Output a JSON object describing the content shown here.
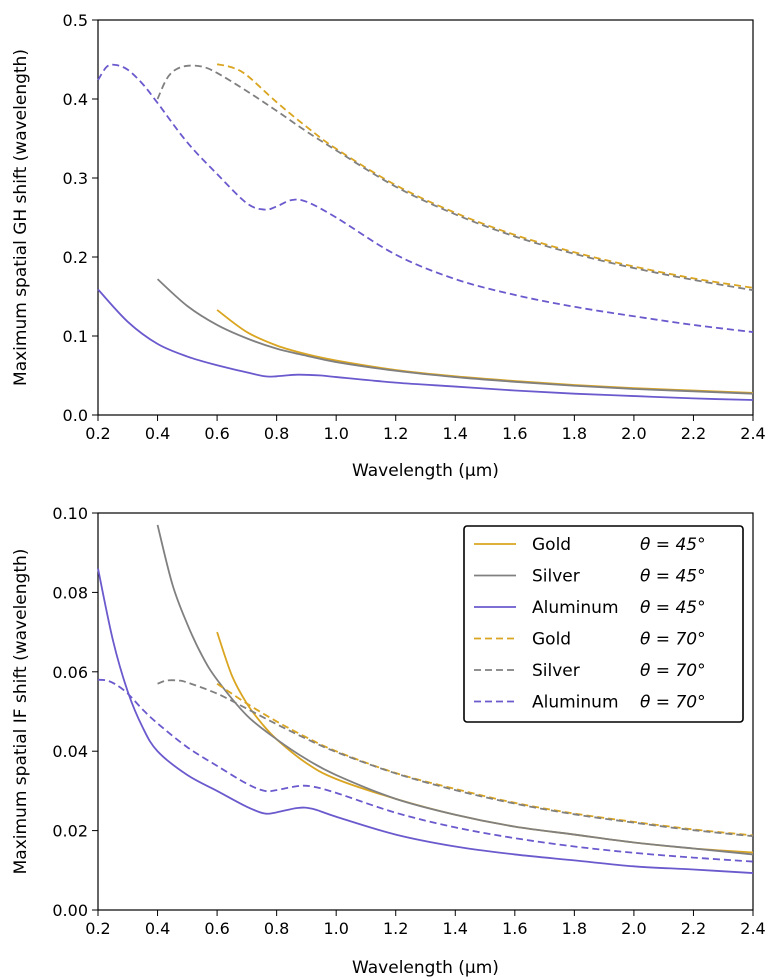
{
  "chart_data": [
    {
      "type": "line",
      "xlabel": "Wavelength (μm)",
      "ylabel": "Maximum spatial GH shift (wavelength)",
      "xlim": [
        0.2,
        2.4
      ],
      "ylim": [
        0.0,
        0.5
      ],
      "xticks": [
        "0.2",
        "0.4",
        "0.6",
        "0.8",
        "1.0",
        "1.2",
        "1.4",
        "1.6",
        "1.8",
        "2.0",
        "2.2",
        "2.4"
      ],
      "yticks": [
        "0.0",
        "0.1",
        "0.2",
        "0.3",
        "0.4",
        "0.5"
      ],
      "grid": false,
      "series": [
        {
          "material": "Gold",
          "angle": "45",
          "color": "#DAA520",
          "dash": "solid",
          "x": [
            0.6,
            0.7,
            0.8,
            0.9,
            1.0,
            1.2,
            1.4,
            1.6,
            1.8,
            2.0,
            2.2,
            2.4
          ],
          "y": [
            0.133,
            0.105,
            0.088,
            0.077,
            0.069,
            0.057,
            0.049,
            0.043,
            0.038,
            0.034,
            0.031,
            0.028
          ]
        },
        {
          "material": "Silver",
          "angle": "45",
          "color": "#808080",
          "dash": "solid",
          "x": [
            0.4,
            0.5,
            0.6,
            0.7,
            0.8,
            0.9,
            1.0,
            1.2,
            1.4,
            1.6,
            1.8,
            2.0,
            2.2,
            2.4
          ],
          "y": [
            0.172,
            0.138,
            0.114,
            0.097,
            0.084,
            0.075,
            0.067,
            0.056,
            0.048,
            0.042,
            0.037,
            0.033,
            0.03,
            0.027
          ]
        },
        {
          "material": "Aluminum",
          "angle": "45",
          "color": "#6A5ACD",
          "dash": "solid",
          "x": [
            0.2,
            0.3,
            0.4,
            0.5,
            0.6,
            0.7,
            0.76,
            0.8,
            0.87,
            0.95,
            1.0,
            1.2,
            1.4,
            1.6,
            1.8,
            2.0,
            2.2,
            2.4
          ],
          "y": [
            0.159,
            0.118,
            0.09,
            0.074,
            0.063,
            0.054,
            0.049,
            0.049,
            0.051,
            0.05,
            0.048,
            0.041,
            0.036,
            0.031,
            0.027,
            0.024,
            0.021,
            0.019
          ]
        },
        {
          "material": "Gold",
          "angle": "70",
          "color": "#DAA520",
          "dash": "dashed",
          "x": [
            0.6,
            0.65,
            0.7,
            0.8,
            0.9,
            1.0,
            1.2,
            1.4,
            1.6,
            1.8,
            2.0,
            2.2,
            2.4
          ],
          "y": [
            0.444,
            0.44,
            0.43,
            0.396,
            0.365,
            0.337,
            0.291,
            0.256,
            0.228,
            0.206,
            0.188,
            0.173,
            0.161
          ]
        },
        {
          "material": "Silver",
          "angle": "70",
          "color": "#808080",
          "dash": "dashed",
          "x": [
            0.4,
            0.43,
            0.46,
            0.5,
            0.55,
            0.6,
            0.7,
            0.8,
            0.9,
            1.0,
            1.2,
            1.4,
            1.6,
            1.8,
            2.0,
            2.2,
            2.4
          ],
          "y": [
            0.4,
            0.425,
            0.437,
            0.442,
            0.441,
            0.433,
            0.41,
            0.385,
            0.359,
            0.335,
            0.289,
            0.254,
            0.226,
            0.204,
            0.186,
            0.171,
            0.158
          ]
        },
        {
          "material": "Aluminum",
          "angle": "70",
          "color": "#6A5ACD",
          "dash": "dashed",
          "x": [
            0.2,
            0.23,
            0.26,
            0.3,
            0.35,
            0.4,
            0.5,
            0.6,
            0.7,
            0.76,
            0.8,
            0.85,
            0.9,
            1.0,
            1.2,
            1.4,
            1.6,
            1.8,
            2.0,
            2.2,
            2.4
          ],
          "y": [
            0.424,
            0.441,
            0.443,
            0.437,
            0.419,
            0.395,
            0.345,
            0.305,
            0.268,
            0.26,
            0.264,
            0.272,
            0.27,
            0.25,
            0.203,
            0.172,
            0.152,
            0.137,
            0.125,
            0.114,
            0.105
          ]
        }
      ]
    },
    {
      "type": "line",
      "xlabel": "Wavelength (μm)",
      "ylabel": "Maximum spatial IF shift (wavelength)",
      "xlim": [
        0.2,
        2.4
      ],
      "ylim": [
        0.0,
        0.1
      ],
      "xticks": [
        "0.2",
        "0.4",
        "0.6",
        "0.8",
        "1.0",
        "1.2",
        "1.4",
        "1.6",
        "1.8",
        "2.0",
        "2.2",
        "2.4"
      ],
      "yticks": [
        "0.00",
        "0.02",
        "0.04",
        "0.06",
        "0.08",
        "0.10"
      ],
      "grid": false,
      "legend_position": "top-right",
      "series": [
        {
          "material": "Gold",
          "angle": "45",
          "color": "#DAA520",
          "dash": "solid",
          "x": [
            0.6,
            0.65,
            0.7,
            0.75,
            0.8,
            0.9,
            1.0,
            1.2,
            1.4,
            1.6,
            1.8,
            2.0,
            2.2,
            2.4
          ],
          "y": [
            0.07,
            0.059,
            0.052,
            0.047,
            0.043,
            0.037,
            0.033,
            0.028,
            0.024,
            0.021,
            0.019,
            0.017,
            0.0155,
            0.0145
          ]
        },
        {
          "material": "Silver",
          "angle": "45",
          "color": "#808080",
          "dash": "solid",
          "x": [
            0.4,
            0.45,
            0.5,
            0.55,
            0.6,
            0.7,
            0.8,
            0.9,
            1.0,
            1.2,
            1.4,
            1.6,
            1.8,
            2.0,
            2.2,
            2.4
          ],
          "y": [
            0.097,
            0.082,
            0.072,
            0.064,
            0.058,
            0.049,
            0.043,
            0.038,
            0.034,
            0.028,
            0.024,
            0.021,
            0.019,
            0.017,
            0.0155,
            0.014
          ]
        },
        {
          "material": "Aluminum",
          "angle": "45",
          "color": "#6A5ACD",
          "dash": "solid",
          "x": [
            0.2,
            0.25,
            0.3,
            0.35,
            0.4,
            0.5,
            0.6,
            0.7,
            0.76,
            0.8,
            0.87,
            0.92,
            1.0,
            1.2,
            1.4,
            1.6,
            1.8,
            2.0,
            2.2,
            2.4
          ],
          "y": [
            0.086,
            0.068,
            0.055,
            0.046,
            0.04,
            0.034,
            0.03,
            0.026,
            0.0243,
            0.0246,
            0.0257,
            0.0255,
            0.0235,
            0.019,
            0.016,
            0.014,
            0.0125,
            0.011,
            0.0102,
            0.0093
          ]
        },
        {
          "material": "Gold",
          "angle": "70",
          "color": "#DAA520",
          "dash": "dashed",
          "x": [
            0.6,
            0.7,
            0.8,
            0.9,
            1.0,
            1.2,
            1.4,
            1.6,
            1.8,
            2.0,
            2.2,
            2.4
          ],
          "y": [
            0.057,
            0.052,
            0.0475,
            0.0435,
            0.04,
            0.0345,
            0.0305,
            0.027,
            0.0243,
            0.0222,
            0.0203,
            0.0188
          ]
        },
        {
          "material": "Silver",
          "angle": "70",
          "color": "#808080",
          "dash": "dashed",
          "x": [
            0.4,
            0.43,
            0.47,
            0.5,
            0.6,
            0.7,
            0.8,
            0.9,
            1.0,
            1.2,
            1.4,
            1.6,
            1.8,
            2.0,
            2.2,
            2.4
          ],
          "y": [
            0.057,
            0.0578,
            0.0578,
            0.0573,
            0.0545,
            0.0507,
            0.0468,
            0.0431,
            0.0398,
            0.0344,
            0.0302,
            0.0268,
            0.0241,
            0.022,
            0.0201,
            0.0186
          ]
        },
        {
          "material": "Aluminum",
          "angle": "70",
          "color": "#6A5ACD",
          "dash": "dashed",
          "x": [
            0.2,
            0.23,
            0.26,
            0.3,
            0.35,
            0.4,
            0.5,
            0.6,
            0.7,
            0.76,
            0.8,
            0.87,
            0.92,
            1.0,
            1.2,
            1.4,
            1.6,
            1.8,
            2.0,
            2.2,
            2.4
          ],
          "y": [
            0.058,
            0.0578,
            0.0568,
            0.0545,
            0.0505,
            0.047,
            0.041,
            0.0363,
            0.0318,
            0.03,
            0.0302,
            0.0312,
            0.0311,
            0.0295,
            0.0245,
            0.0208,
            0.0181,
            0.016,
            0.0144,
            0.0132,
            0.0122
          ]
        }
      ]
    }
  ],
  "legend": {
    "items": [
      {
        "material": "Gold",
        "theta_label": "θ = 45°",
        "color": "#DAA520",
        "dash": "solid"
      },
      {
        "material": "Silver",
        "theta_label": "θ = 45°",
        "color": "#808080",
        "dash": "solid"
      },
      {
        "material": "Aluminum",
        "theta_label": "θ = 45°",
        "color": "#6A5ACD",
        "dash": "solid"
      },
      {
        "material": "Gold",
        "theta_label": "θ = 70°",
        "color": "#DAA520",
        "dash": "dashed"
      },
      {
        "material": "Silver",
        "theta_label": "θ = 70°",
        "color": "#808080",
        "dash": "dashed"
      },
      {
        "material": "Aluminum",
        "theta_label": "θ = 70°",
        "color": "#6A5ACD",
        "dash": "dashed"
      }
    ]
  }
}
